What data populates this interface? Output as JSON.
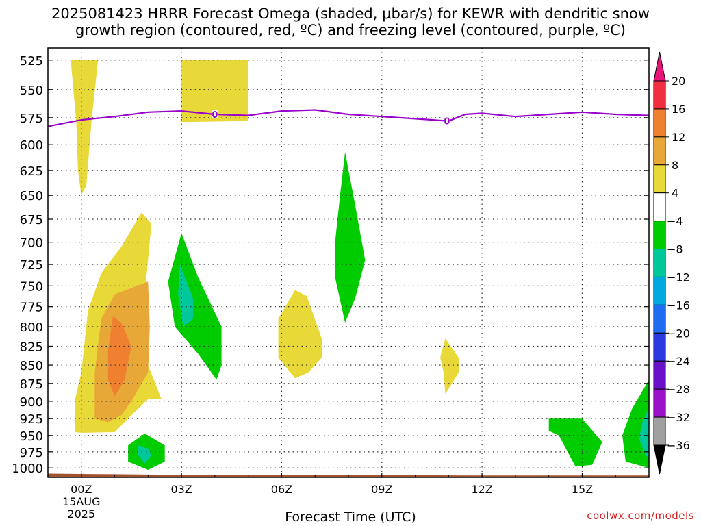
{
  "title_line_1": "2025081423 HRRR Forecast Omega (shaded, μbar/s) for KEWR with dendritic snow",
  "title_line_2": "growth region (contoured, red, ºC) and freezing level (contoured, purple, ºC)",
  "credit": "coolwx.com/models",
  "chart_data": {
    "type": "heatmap",
    "title": "2025081423 HRRR Forecast Omega (shaded, μbar/s) for KEWR with dendritic snow growth region (contoured, red, ºC) and freezing level (contoured, purple, ºC)",
    "xlabel": "Forecast Time (UTC)",
    "ylabel": "",
    "x_ticks": [
      {
        "hour": 0,
        "label": "00Z",
        "sublabels": [
          "15AUG",
          "2025"
        ]
      },
      {
        "hour": 3,
        "label": "03Z"
      },
      {
        "hour": 6,
        "label": "06Z"
      },
      {
        "hour": 9,
        "label": "09Z"
      },
      {
        "hour": 12,
        "label": "12Z"
      },
      {
        "hour": 15,
        "label": "15Z"
      }
    ],
    "xlim": [
      -1,
      17
    ],
    "y_levels": [
      525,
      550,
      575,
      600,
      625,
      650,
      675,
      700,
      725,
      750,
      775,
      800,
      825,
      850,
      875,
      900,
      925,
      950,
      975,
      1000
    ],
    "ylim": [
      1015,
      515
    ],
    "grid": true,
    "colorbar": {
      "levels": [
        20,
        16,
        12,
        8,
        4,
        -4,
        -8,
        -12,
        -16,
        -20,
        -24,
        -28,
        -32,
        -36
      ],
      "colors": [
        "#f03040",
        "#ee8030",
        "#e8a838",
        "#e8d838",
        "#ffffff",
        "#00cc00",
        "#00c89a",
        "#00a8e0",
        "#1e6cf0",
        "#2a3ae0",
        "#6a10c8",
        "#9a10c8",
        "#a0a0a0"
      ],
      "over_color": "#e8147a",
      "under_color": "#000000"
    },
    "shaded_regions": [
      {
        "color": "#e8d838",
        "points": [
          [
            -0.3,
            525
          ],
          [
            0.5,
            525
          ],
          [
            0.3,
            580
          ],
          [
            0.15,
            640
          ],
          [
            0,
            650
          ],
          [
            -0.1,
            625
          ],
          [
            -0.15,
            580
          ],
          [
            -0.3,
            530
          ]
        ]
      },
      {
        "color": "#e8d838",
        "points": [
          [
            3,
            525
          ],
          [
            5,
            525
          ],
          [
            5,
            578
          ],
          [
            3,
            579
          ]
        ]
      },
      {
        "color": "#e8d838",
        "points": [
          [
            -0.2,
            945
          ],
          [
            -0.2,
            900
          ],
          [
            0,
            860
          ],
          [
            0.2,
            780
          ],
          [
            0.6,
            735
          ],
          [
            1.2,
            705
          ],
          [
            1.8,
            668
          ],
          [
            2.1,
            680
          ],
          [
            1.9,
            760
          ],
          [
            2,
            850
          ],
          [
            2.4,
            897
          ],
          [
            2,
            897
          ],
          [
            1.5,
            920
          ],
          [
            1,
            945
          ],
          [
            0,
            946
          ]
        ]
      },
      {
        "color": "#e8a838",
        "points": [
          [
            0.4,
            925
          ],
          [
            0.4,
            860
          ],
          [
            0.6,
            790
          ],
          [
            1,
            760
          ],
          [
            2,
            745
          ],
          [
            2.05,
            800
          ],
          [
            2,
            860
          ],
          [
            1.5,
            900
          ],
          [
            1.2,
            920
          ],
          [
            0.8,
            930
          ]
        ]
      },
      {
        "color": "#ee8030",
        "points": [
          [
            0.8,
            870
          ],
          [
            0.8,
            830
          ],
          [
            0.95,
            787
          ],
          [
            1.2,
            795
          ],
          [
            1.5,
            825
          ],
          [
            1.3,
            870
          ],
          [
            1,
            893
          ]
        ]
      },
      {
        "color": "#e8d838",
        "points": [
          [
            6.4,
            755
          ],
          [
            6.75,
            762
          ],
          [
            7.2,
            815
          ],
          [
            7.2,
            840
          ],
          [
            6.8,
            860
          ],
          [
            6.4,
            868
          ],
          [
            5.9,
            840
          ],
          [
            5.9,
            790
          ]
        ]
      },
      {
        "color": "#e8d838",
        "points": [
          [
            10.9,
            815
          ],
          [
            11.3,
            840
          ],
          [
            11.3,
            860
          ],
          [
            10.9,
            890
          ],
          [
            10.85,
            860
          ],
          [
            10.75,
            840
          ]
        ]
      },
      {
        "color": "#00cc00",
        "points": [
          [
            3,
            690
          ],
          [
            3.5,
            740
          ],
          [
            4.2,
            800
          ],
          [
            4.2,
            850
          ],
          [
            4.05,
            870
          ],
          [
            3.5,
            835
          ],
          [
            2.8,
            800
          ],
          [
            2.6,
            745
          ]
        ]
      },
      {
        "color": "#00c89a",
        "points": [
          [
            2.95,
            725
          ],
          [
            3.35,
            765
          ],
          [
            3.35,
            790
          ],
          [
            3.05,
            800
          ],
          [
            2.9,
            760
          ]
        ]
      },
      {
        "color": "#00cc00",
        "points": [
          [
            7.9,
            607
          ],
          [
            8.2,
            660
          ],
          [
            8.5,
            720
          ],
          [
            8.2,
            765
          ],
          [
            7.9,
            795
          ],
          [
            7.6,
            740
          ],
          [
            7.6,
            700
          ],
          [
            7.75,
            650
          ]
        ]
      },
      {
        "color": "#00cc00",
        "points": [
          [
            1.9,
            947
          ],
          [
            2.5,
            965
          ],
          [
            2.5,
            990
          ],
          [
            2,
            1003
          ],
          [
            1.4,
            990
          ],
          [
            1.4,
            965
          ]
        ]
      },
      {
        "color": "#00c89a",
        "points": [
          [
            1.7,
            965
          ],
          [
            2,
            970
          ],
          [
            2.1,
            980
          ],
          [
            1.9,
            993
          ],
          [
            1.7,
            980
          ]
        ]
      },
      {
        "color": "#00cc00",
        "points": [
          [
            14,
            925
          ],
          [
            15,
            925
          ],
          [
            15.6,
            960
          ],
          [
            15.3,
            995
          ],
          [
            14.8,
            998
          ],
          [
            14.3,
            950
          ],
          [
            14,
            943
          ]
        ]
      },
      {
        "color": "#00cc00",
        "points": [
          [
            17,
            870
          ],
          [
            16.5,
            910
          ],
          [
            16.2,
            950
          ],
          [
            16.3,
            990
          ],
          [
            17,
            1000
          ]
        ]
      },
      {
        "color": "#00c89a",
        "points": [
          [
            17,
            910
          ],
          [
            16.8,
            930
          ],
          [
            16.7,
            955
          ],
          [
            16.9,
            980
          ],
          [
            17,
            985
          ]
        ]
      }
    ],
    "freezing_level": {
      "value_label": "0",
      "color": "#9900cc",
      "points": [
        [
          -1,
          583
        ],
        [
          0,
          577
        ],
        [
          1,
          574
        ],
        [
          2,
          570
        ],
        [
          3,
          569
        ],
        [
          4,
          572
        ],
        [
          5,
          573
        ],
        [
          6,
          569
        ],
        [
          7,
          568
        ],
        [
          8,
          572
        ],
        [
          9,
          574
        ],
        [
          10,
          576
        ],
        [
          11,
          578
        ],
        [
          11.5,
          572
        ],
        [
          12,
          571
        ],
        [
          13,
          574
        ],
        [
          14,
          572
        ],
        [
          15,
          570
        ],
        [
          16,
          572
        ],
        [
          17,
          573
        ]
      ],
      "label_positions": [
        [
          4,
          572
        ],
        [
          10.95,
          578
        ]
      ]
    },
    "terrain": {
      "color": "#a0522d",
      "top": [
        [
          -1,
          1009
        ],
        [
          0,
          1009.5
        ],
        [
          1,
          1010
        ],
        [
          2,
          1010.5
        ],
        [
          3,
          1011
        ],
        [
          4,
          1011
        ],
        [
          5,
          1011
        ],
        [
          6,
          1010.6
        ],
        [
          7,
          1010.7
        ],
        [
          8,
          1011
        ],
        [
          9,
          1011.3
        ],
        [
          10,
          1011.6
        ],
        [
          11,
          1011.8
        ],
        [
          12,
          1012
        ],
        [
          13,
          1012
        ],
        [
          14,
          1012
        ],
        [
          15,
          1012
        ],
        [
          16,
          1012
        ],
        [
          17,
          1012
        ]
      ]
    }
  }
}
